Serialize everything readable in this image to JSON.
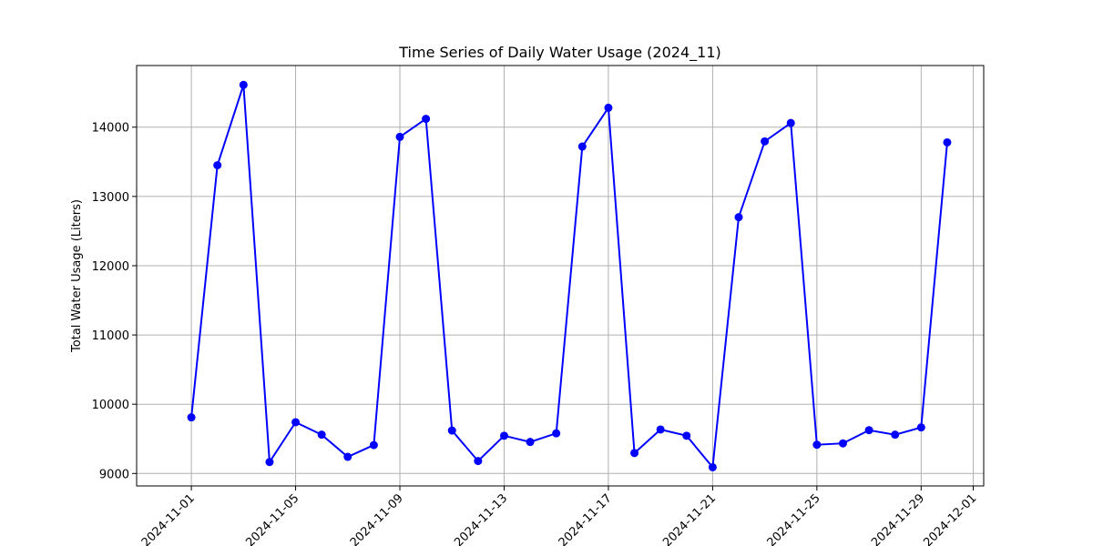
{
  "chart_data": {
    "type": "line",
    "title": "Time Series of Daily Water Usage (2024_11)",
    "xlabel": "",
    "ylabel": "Total Water Usage (Liters)",
    "x": [
      "2024-11-01",
      "2024-11-02",
      "2024-11-03",
      "2024-11-04",
      "2024-11-05",
      "2024-11-06",
      "2024-11-07",
      "2024-11-08",
      "2024-11-09",
      "2024-11-10",
      "2024-11-11",
      "2024-11-12",
      "2024-11-13",
      "2024-11-14",
      "2024-11-15",
      "2024-11-16",
      "2024-11-17",
      "2024-11-18",
      "2024-11-19",
      "2024-11-20",
      "2024-11-21",
      "2024-11-22",
      "2024-11-23",
      "2024-11-24",
      "2024-11-25",
      "2024-11-26",
      "2024-11-27",
      "2024-11-28",
      "2024-11-29",
      "2024-11-30"
    ],
    "series": [
      {
        "values": [
          9810,
          13450,
          14610,
          9165,
          9740,
          9560,
          9240,
          9410,
          13860,
          14120,
          9620,
          9180,
          9545,
          9455,
          9580,
          13720,
          14280,
          9295,
          9635,
          9545,
          9090,
          12700,
          13795,
          14060,
          9415,
          9435,
          9625,
          9560,
          9665,
          13780
        ],
        "color": "#0000ff"
      }
    ],
    "xlim": [
      "2024-10-29T21:36",
      "2024-12-01T09:36"
    ],
    "ylim": [
      8820,
      14890
    ],
    "xticks": [
      "2024-11-01",
      "2024-11-05",
      "2024-11-09",
      "2024-11-13",
      "2024-11-17",
      "2024-11-21",
      "2024-11-25",
      "2024-11-29",
      "2024-12-01"
    ],
    "yticks": [
      9000,
      10000,
      11000,
      12000,
      13000,
      14000
    ],
    "grid": true,
    "legend": "none"
  }
}
